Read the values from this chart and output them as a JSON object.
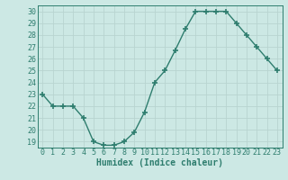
{
  "x": [
    0,
    1,
    2,
    3,
    4,
    5,
    6,
    7,
    8,
    9,
    10,
    11,
    12,
    13,
    14,
    15,
    16,
    17,
    18,
    19,
    20,
    21,
    22,
    23
  ],
  "y": [
    23,
    22,
    22,
    22,
    21,
    19,
    18.7,
    18.7,
    19,
    19.8,
    21.5,
    24,
    25,
    26.7,
    28.5,
    30,
    30,
    30,
    30,
    29,
    28,
    27,
    26,
    25
  ],
  "line_color": "#2e7d6e",
  "marker": "+",
  "marker_size": 4,
  "marker_lw": 1.2,
  "bg_color": "#cce8e4",
  "grid_color": "#b8d4d0",
  "axis_color": "#2e7d6e",
  "xlabel": "Humidex (Indice chaleur)",
  "ylabel": "",
  "xlim": [
    -0.5,
    23.5
  ],
  "ylim": [
    18.5,
    30.5
  ],
  "yticks": [
    19,
    20,
    21,
    22,
    23,
    24,
    25,
    26,
    27,
    28,
    29,
    30
  ],
  "xtick_labels": [
    "0",
    "1",
    "2",
    "3",
    "4",
    "5",
    "6",
    "7",
    "8",
    "9",
    "10",
    "11",
    "12",
    "13",
    "14",
    "15",
    "16",
    "17",
    "18",
    "19",
    "20",
    "21",
    "22",
    "23"
  ],
  "font_size_ticks": 6,
  "font_size_xlabel": 7,
  "line_width": 1.0
}
